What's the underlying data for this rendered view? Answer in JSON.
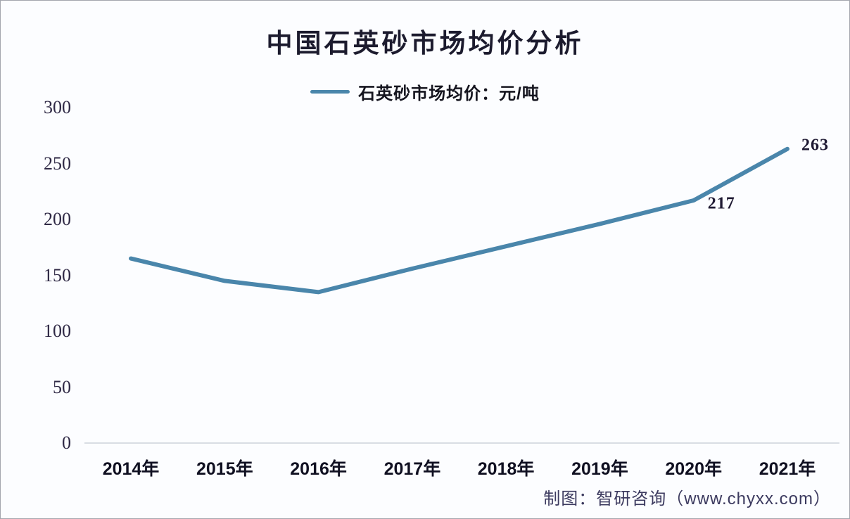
{
  "chart_data": {
    "type": "line",
    "title": "中国石英砂市场均价分析",
    "legend": "石英砂市场均价：元/吨",
    "categories": [
      "2014年",
      "2015年",
      "2016年",
      "2017年",
      "2018年",
      "2019年",
      "2020年",
      "2021年"
    ],
    "series": [
      {
        "name": "石英砂市场均价：元/吨",
        "values": [
          165,
          145,
          135,
          156,
          176,
          196,
          217,
          263
        ]
      }
    ],
    "ylim": [
      0,
      300
    ],
    "yticks": [
      0,
      50,
      100,
      150,
      200,
      250,
      300
    ],
    "grid": false,
    "legend_position": "top",
    "data_labels": [
      {
        "category": "2020年",
        "text": "217"
      },
      {
        "category": "2021年",
        "text": "263"
      }
    ],
    "colors": {
      "line": "#4a86ab",
      "axis_line": "#d9dde3",
      "title_text": "#1c1b2e",
      "tick_text": "#2f2945"
    }
  },
  "footer": {
    "attribution": "制图：智研咨询（www.chyxx.com）"
  }
}
